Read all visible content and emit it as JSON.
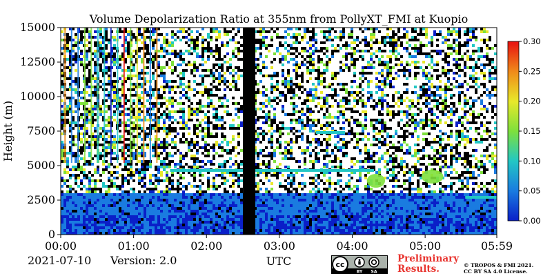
{
  "chart_data": {
    "type": "heatmap",
    "title": "Volume Depolarization Ratio at 355nm from PollyXT_FMI at Kuopio",
    "ylabel": "Height (m)",
    "xlabel": "UTC",
    "ylim": [
      0,
      15000
    ],
    "xlim_hours": [
      0,
      5.9833
    ],
    "y_ticks": [
      0,
      2500,
      5000,
      7500,
      10000,
      12500,
      15000
    ],
    "y_tick_labels": [
      "0",
      "2500",
      "5000",
      "7500",
      "10000",
      "12500",
      "15000"
    ],
    "x_ticks_hours": [
      0,
      1,
      2,
      3,
      4,
      5,
      5.9833
    ],
    "x_tick_labels": [
      "00:00",
      "01:00",
      "02:00",
      "03:00",
      "04:00",
      "05:00",
      "05:59"
    ],
    "colorbar": {
      "range": [
        0.0,
        0.3
      ],
      "ticks": [
        0.0,
        0.05,
        0.1,
        0.15,
        0.2,
        0.25,
        0.3
      ],
      "tick_labels": [
        "0.00",
        "0.05",
        "0.10",
        "0.15",
        "0.20",
        "0.25",
        "0.30"
      ],
      "colors": [
        "#0a1fc8",
        "#1a7be0",
        "#22c7c4",
        "#7ee03c",
        "#e8e82a",
        "#f08a1a",
        "#e81010"
      ]
    },
    "data_gap_hours": [
      2.5,
      2.67
    ],
    "layers": [
      {
        "name": "boundary-layer",
        "start_h": 0.0,
        "end_h": 5.9833,
        "top_m": 3200,
        "value": 0.02
      },
      {
        "name": "layer-top-line",
        "start_h": 1.5,
        "end_h": 2.5,
        "height_m": 4650,
        "value": 0.1
      },
      {
        "name": "layer-top-line",
        "start_h": 2.67,
        "end_h": 4.3,
        "height_m": 4650,
        "value": 0.1
      },
      {
        "name": "aerosol-patch",
        "start_h": 4.2,
        "end_h": 4.45,
        "height_m": 3900,
        "value": 0.16
      },
      {
        "name": "aerosol-patch",
        "start_h": 4.95,
        "end_h": 5.25,
        "height_m": 4200,
        "value": 0.17
      },
      {
        "name": "upper-line",
        "start_h": 3.5,
        "end_h": 3.9,
        "height_m": 7400,
        "value": 0.1
      },
      {
        "name": "late-layer",
        "start_h": 5.55,
        "end_h": 5.9833,
        "height_m": 2700,
        "value": 0.11
      }
    ]
  },
  "footer": {
    "date": "2021-07-10",
    "version": "Version: 2.0",
    "preliminary_line1": "Preliminary",
    "preliminary_line2": "Results.",
    "copyright_line1": "© TROPOS & FMI 2021.",
    "copyright_line2": "CC BY SA 4.0 License.",
    "cc_label": "cc",
    "by_label": "BY",
    "sa_label": "SA"
  }
}
